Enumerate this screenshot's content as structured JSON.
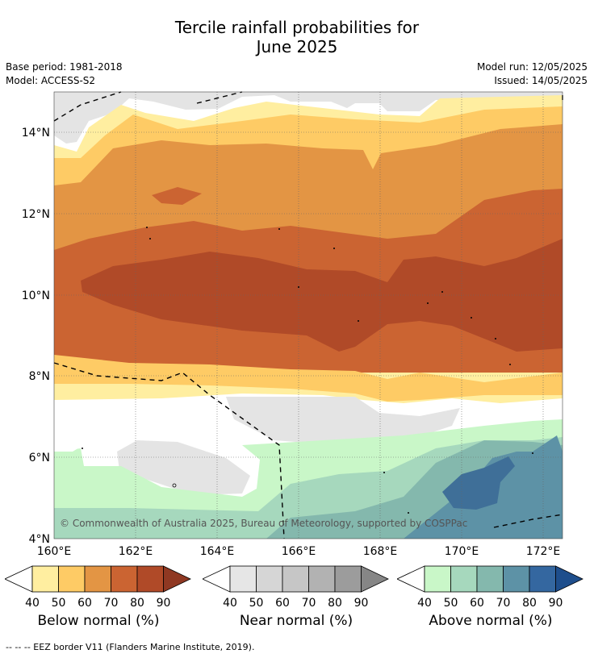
{
  "title_line1": "Tercile rainfall probabilities for",
  "title_line2": "June 2025",
  "base_period": "Base period: 1981-2018",
  "model": "Model: ACCESS-S2",
  "model_run": "Model run: 12/05/2025",
  "issued": "Issued: 14/05/2025",
  "copyright": "© Commonwealth of Australia 2025, Bureau of Meteorology, supported by COSPPac",
  "footer": "--  --  -- EEZ border V11 (Flanders Marine Institute, 2019).",
  "map": {
    "lat_ticks": [
      "14°N",
      "12°N",
      "10°N",
      "8°N",
      "6°N",
      "4°N"
    ],
    "lon_ticks": [
      "160°E",
      "162°E",
      "164°E",
      "166°E",
      "168°E",
      "170°E",
      "172°E"
    ]
  },
  "colorbars": [
    {
      "label": "Below normal (%)",
      "ticks": [
        "40",
        "50",
        "60",
        "70",
        "80",
        "90"
      ],
      "colors": [
        "#ffffff",
        "#ffeea0",
        "#fecb65",
        "#e39544",
        "#cb6432",
        "#b04a28",
        "#8f3822"
      ]
    },
    {
      "label": "Near normal (%)",
      "ticks": [
        "40",
        "50",
        "60",
        "70",
        "80",
        "90"
      ],
      "colors": [
        "#ffffff",
        "#e6e6e6",
        "#d6d6d6",
        "#c6c6c6",
        "#b2b2b2",
        "#9c9c9c",
        "#868686"
      ]
    },
    {
      "label": "Above normal (%)",
      "ticks": [
        "40",
        "50",
        "60",
        "70",
        "80",
        "90"
      ],
      "colors": [
        "#ffffff",
        "#c9f7c8",
        "#a6d8bd",
        "#84b8ad",
        "#5d92a6",
        "#3467a0",
        "#1e4e8c"
      ]
    }
  ]
}
